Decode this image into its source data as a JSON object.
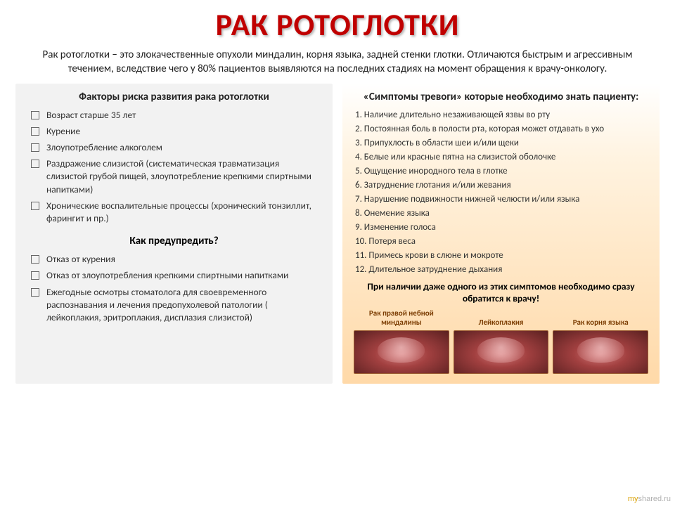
{
  "title": "РАК РОТОГЛОТКИ",
  "intro": "Рак ротоглотки – это злокачественные опухоли миндалин, корня языка, задней стенки глотки. Отличаются быстрым и агрессивным течением, вследствие чего у 80% пациентов выявляются на последних стадиях на момент обращения к врачу-онкологу.",
  "left": {
    "heading1": "Факторы риска развития рака ротоглотки",
    "risks": [
      "Возраст старше 35 лет",
      "Курение",
      "Злоупотребление алкоголем",
      "Раздражение слизистой (систематическая травматизация слизистой грубой пищей, злоупотребление крепкими спиртными напитками)",
      "Хронические воспалительные процессы (хронический тонзиллит, фарингит и пр.)"
    ],
    "heading2": "Как предупредить?",
    "prevention": [
      "Отказ от курения",
      "Отказ от злоупотребления крепкими спиртными напитками",
      "Ежегодные осмотры стоматолога для своевременного распознавания и лечения предопухолевой патологии ( лейкоплакия, эритроплакия, дисплазия слизистой)"
    ]
  },
  "right": {
    "heading": "«Симптомы тревоги» которые необходимо знать пациенту:",
    "symptoms": [
      "1. Наличие длительно незаживающей язвы во рту",
      "2. Постоянная боль в полости рта, которая может отдавать в ухо",
      "3. Припухлость в области шеи и/или щеки",
      "4. Белые или красные пятна на слизистой оболочке",
      "5. Ощущение инородного тела в глотке",
      "6. Затруднение глотания и/или жевания",
      "7. Нарушение подвижности нижней челюсти и/или языка",
      "8. Онемение языка",
      "9. Изменение голоса",
      "10. Потеря веса",
      "11. Примесь крови в слюне и мокроте",
      "12. Длительное затруднение дыхания"
    ],
    "closing": "При наличии даже одного из этих симптомов необходимо сразу обратится к врачу!",
    "images": [
      {
        "caption": "Рак правой небной миндалины"
      },
      {
        "caption": "Лейкоплакия"
      },
      {
        "caption": "Рак корня языка"
      }
    ]
  },
  "watermark": {
    "my": "my",
    "shared": "shared.ru"
  },
  "colors": {
    "title": "#c00000",
    "left_bg": "#f2f2f2",
    "right_bg_top": "#ffffff",
    "right_bg_bottom": "#ffd9a8",
    "caption_color": "#7a3b00"
  }
}
